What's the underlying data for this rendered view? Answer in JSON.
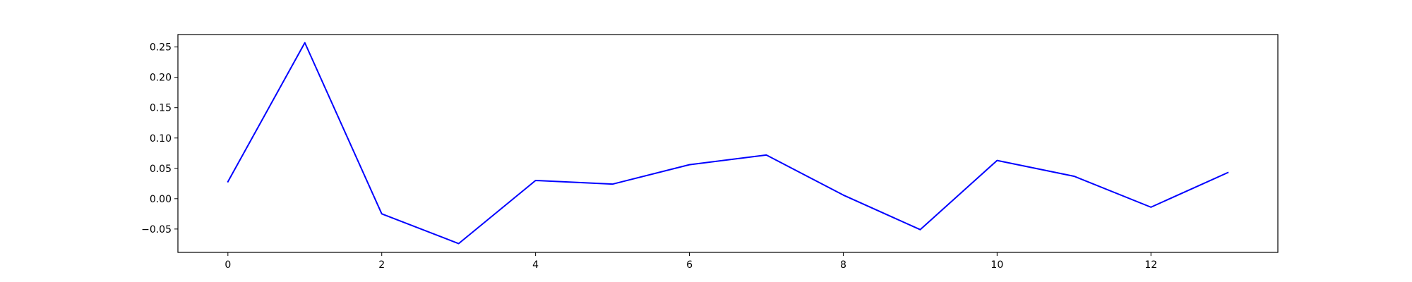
{
  "chart_data": {
    "type": "line",
    "title": "",
    "xlabel": "",
    "ylabel": "",
    "xlim": [
      -0.65,
      13.65
    ],
    "ylim": [
      -0.0885,
      0.2705
    ],
    "x_ticks": [
      0,
      2,
      4,
      6,
      8,
      10,
      12
    ],
    "x_tick_labels": [
      "0",
      "2",
      "4",
      "6",
      "8",
      "10",
      "12"
    ],
    "y_ticks": [
      -0.05,
      0.0,
      0.05,
      0.1,
      0.15,
      0.2,
      0.25
    ],
    "y_tick_labels": [
      "−0.05",
      "0.00",
      "0.05",
      "0.10",
      "0.15",
      "0.20",
      "0.25"
    ],
    "grid": false,
    "series": [
      {
        "color": "#0000ff",
        "x": [
          0,
          1,
          2,
          3,
          4,
          5,
          6,
          7,
          8,
          9,
          10,
          11,
          12,
          13
        ],
        "values": [
          0.028,
          0.257,
          -0.025,
          -0.074,
          0.03,
          0.024,
          0.056,
          0.072,
          0.006,
          -0.051,
          0.063,
          0.037,
          -0.014,
          0.043
        ]
      }
    ]
  }
}
